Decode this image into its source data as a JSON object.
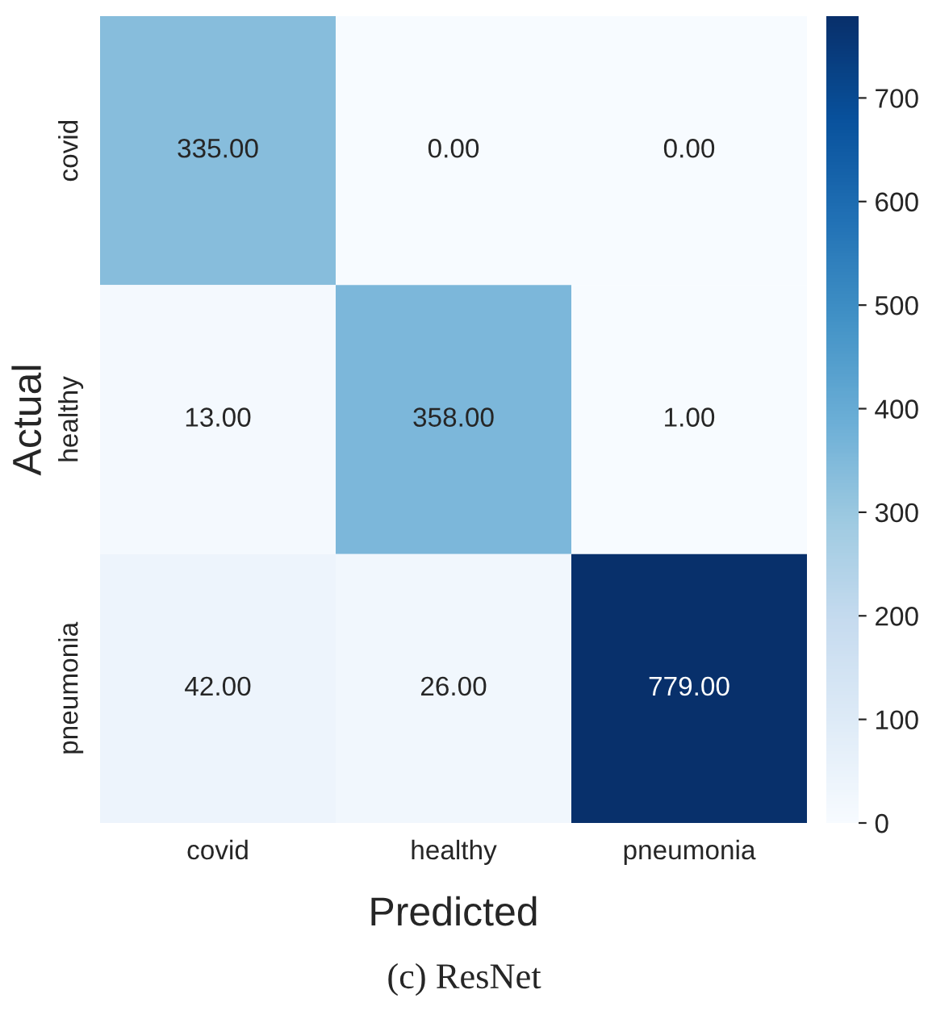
{
  "chart_data": {
    "type": "heatmap",
    "xlabel": "Predicted",
    "ylabel": "Actual",
    "categories": [
      "covid",
      "healthy",
      "pneumonia"
    ],
    "y_categories": [
      "covid",
      "healthy",
      "pneumonia"
    ],
    "cells": [
      [
        335,
        0,
        0
      ],
      [
        13,
        358,
        1
      ],
      [
        42,
        26,
        779
      ]
    ],
    "cell_labels": [
      [
        "335.00",
        "0.00",
        "0.00"
      ],
      [
        "13.00",
        "358.00",
        "1.00"
      ],
      [
        "42.00",
        "26.00",
        "779.00"
      ]
    ],
    "clim": [
      0,
      779
    ],
    "cticks": [
      0,
      100,
      200,
      300,
      400,
      500,
      600,
      700
    ],
    "annotations": [
      "(c) ResNet"
    ]
  }
}
